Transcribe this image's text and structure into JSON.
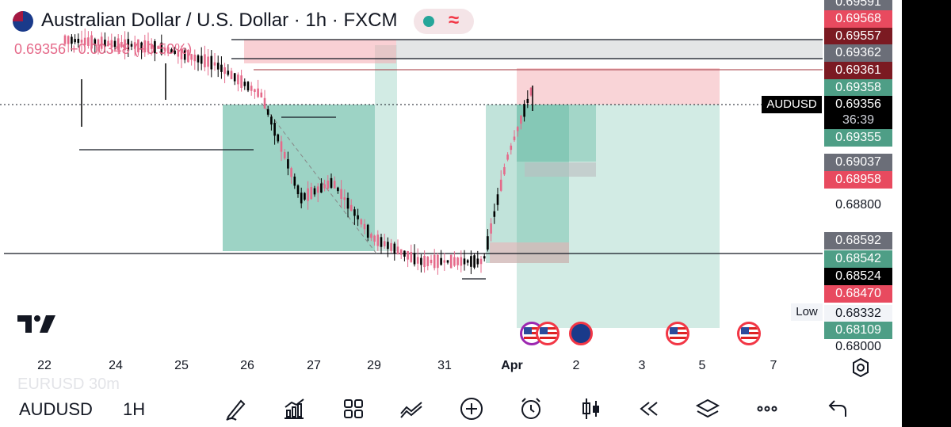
{
  "header": {
    "title": "Australian Dollar / U.S. Dollar · 1h · FXCM",
    "change": "0.69356 +0.00348 (+0.50%)",
    "flag_icon": "aud-flag-icon",
    "pill_wave_glyph": "≈"
  },
  "colors": {
    "bull": "#26a69a",
    "bear": "#ef5350",
    "bull_candle": "#000000",
    "bear_candle": "#e56a8a",
    "green_zone": "#4cae95",
    "red_zone": "#f4a9b0",
    "gray_zone": "#d9dadb"
  },
  "price_axis": {
    "tags": [
      {
        "id": "p69591",
        "value": "0.69591",
        "style": "tag-gray"
      },
      {
        "id": "p69568",
        "value": "0.69568",
        "style": "tag-red"
      },
      {
        "id": "p69557",
        "value": "0.69557",
        "style": "tag-dark-red"
      },
      {
        "id": "p69362",
        "value": "0.69362",
        "style": "tag-gray"
      },
      {
        "id": "p69361",
        "value": "0.69361",
        "style": "tag-dark-red"
      },
      {
        "id": "p69358",
        "value": "0.69358",
        "style": "tag-teal"
      },
      {
        "id": "p69355",
        "value": "0.69355",
        "style": "tag-teal"
      },
      {
        "id": "p69037",
        "value": "0.69037",
        "style": "tag-gray"
      },
      {
        "id": "p68958",
        "value": "0.68958",
        "style": "tag-red"
      },
      {
        "id": "p68592",
        "value": "0.68592",
        "style": "tag-gray"
      },
      {
        "id": "p68542",
        "value": "0.68542",
        "style": "tag-teal"
      },
      {
        "id": "p68524",
        "value": "0.68524",
        "style": "tag-black"
      },
      {
        "id": "p68470",
        "value": "0.68470",
        "style": "tag-red"
      },
      {
        "id": "p68109",
        "value": "0.68109",
        "style": "tag-teal"
      }
    ],
    "plain_labels": {
      "p68800": "0.68800",
      "p68332": "0.68332",
      "p68000": "0.68000"
    },
    "current_symbol": "AUDUSD",
    "current_price": "0.69356",
    "countdown": "36:39",
    "low_label": "Low"
  },
  "time_axis": [
    "22",
    "24",
    "25",
    "26",
    "27",
    "29",
    "31",
    "Apr",
    "2",
    "3",
    "5",
    "7"
  ],
  "events": [
    "us-flag-icon",
    "us-flag-icon",
    "aud-flag-icon",
    "us-flag-icon",
    "us-flag-icon"
  ],
  "toolbar": {
    "ghost_text": "EURUSD    30m",
    "symbol": "AUDUSD",
    "interval": "1H",
    "icons": [
      "drawing-pen-icon",
      "indicators-icon",
      "layout-grid-icon",
      "compare-icon",
      "add-icon",
      "alert-clock-icon",
      "candles-icon",
      "replay-icon",
      "layers-icon",
      "more-icon",
      "undo-icon"
    ]
  }
}
